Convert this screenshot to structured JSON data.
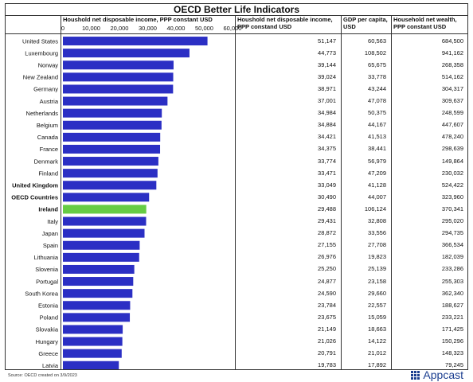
{
  "title": "OECD Better Life Indicators",
  "headers": {
    "chart": "Houshold net disposable income, PPP constant USD",
    "income": "Houshold net disposable income, PPP constand USD",
    "gdp": "GDP per capita, USD",
    "wealth": "Household net wealth, PPP constant USD"
  },
  "source": "Source: OECD created on 3/9/2023",
  "brand": "Appcast",
  "colors": {
    "bar": "#2b2fc4",
    "highlight": "#66cc44"
  },
  "chart_data": {
    "type": "bar",
    "orientation": "horizontal",
    "xlim": [
      0,
      60000
    ],
    "ticks": [
      "0",
      "10,000",
      "20,000",
      "30,000",
      "40,000",
      "50,000",
      "60,000"
    ],
    "highlight": "Ireland",
    "rows": [
      {
        "country": "United States",
        "bold": false,
        "value": 51147,
        "income": "51,147",
        "gdp": "60,563",
        "wealth": "684,500"
      },
      {
        "country": "Luxembourg",
        "bold": false,
        "value": 44773,
        "income": "44,773",
        "gdp": "108,502",
        "wealth": "941,162"
      },
      {
        "country": "Norway",
        "bold": false,
        "value": 39144,
        "income": "39,144",
        "gdp": "65,675",
        "wealth": "268,358"
      },
      {
        "country": "New Zealand",
        "bold": false,
        "value": 39024,
        "income": "39,024",
        "gdp": "33,778",
        "wealth": "514,162"
      },
      {
        "country": "Germany",
        "bold": false,
        "value": 38971,
        "income": "38,971",
        "gdp": "43,244",
        "wealth": "304,317"
      },
      {
        "country": "Austria",
        "bold": false,
        "value": 37001,
        "income": "37,001",
        "gdp": "47,078",
        "wealth": "309,637"
      },
      {
        "country": "Netherlands",
        "bold": false,
        "value": 34984,
        "income": "34,984",
        "gdp": "50,375",
        "wealth": "248,599"
      },
      {
        "country": "Belgium",
        "bold": false,
        "value": 34884,
        "income": "34,884",
        "gdp": "44,167",
        "wealth": "447,607"
      },
      {
        "country": "Canada",
        "bold": false,
        "value": 34421,
        "income": "34,421",
        "gdp": "41,513",
        "wealth": "478,240"
      },
      {
        "country": "France",
        "bold": false,
        "value": 34375,
        "income": "34,375",
        "gdp": "38,441",
        "wealth": "298,639"
      },
      {
        "country": "Denmark",
        "bold": false,
        "value": 33774,
        "income": "33,774",
        "gdp": "56,979",
        "wealth": "149,864"
      },
      {
        "country": "Finland",
        "bold": false,
        "value": 33471,
        "income": "33,471",
        "gdp": "47,209",
        "wealth": "230,032"
      },
      {
        "country": "United Kingdom",
        "bold": true,
        "value": 33049,
        "income": "33,049",
        "gdp": "41,128",
        "wealth": "524,422"
      },
      {
        "country": "OECD Countries",
        "bold": true,
        "value": 30490,
        "income": "30,490",
        "gdp": "44,007",
        "wealth": "323,960"
      },
      {
        "country": "Ireland",
        "bold": true,
        "value": 29488,
        "income": "29,488",
        "gdp": "106,124",
        "wealth": "370,341"
      },
      {
        "country": "Italy",
        "bold": false,
        "value": 29431,
        "income": "29,431",
        "gdp": "32,808",
        "wealth": "295,020"
      },
      {
        "country": "Japan",
        "bold": false,
        "value": 28872,
        "income": "28,872",
        "gdp": "33,556",
        "wealth": "294,735"
      },
      {
        "country": "Spain",
        "bold": false,
        "value": 27155,
        "income": "27,155",
        "gdp": "27,708",
        "wealth": "366,534"
      },
      {
        "country": "Lithuania",
        "bold": false,
        "value": 26976,
        "income": "26,976",
        "gdp": "19,823",
        "wealth": "182,039"
      },
      {
        "country": "Slovenia",
        "bold": false,
        "value": 25250,
        "income": "25,250",
        "gdp": "25,139",
        "wealth": "233,286"
      },
      {
        "country": "Portugal",
        "bold": false,
        "value": 24877,
        "income": "24,877",
        "gdp": "23,158",
        "wealth": "255,303"
      },
      {
        "country": "South Korea",
        "bold": false,
        "value": 24590,
        "income": "24,590",
        "gdp": "29,660",
        "wealth": "362,340"
      },
      {
        "country": "Estonia",
        "bold": false,
        "value": 23784,
        "income": "23,784",
        "gdp": "22,557",
        "wealth": "188,627"
      },
      {
        "country": "Poland",
        "bold": false,
        "value": 23675,
        "income": "23,675",
        "gdp": "15,059",
        "wealth": "233,221"
      },
      {
        "country": "Slovakia",
        "bold": false,
        "value": 21149,
        "income": "21,149",
        "gdp": "18,663",
        "wealth": "171,425"
      },
      {
        "country": "Hungary",
        "bold": false,
        "value": 21026,
        "income": "21,026",
        "gdp": "14,122",
        "wealth": "150,296"
      },
      {
        "country": "Greece",
        "bold": false,
        "value": 20791,
        "income": "20,791",
        "gdp": "21,012",
        "wealth": "148,323"
      },
      {
        "country": "Latvia",
        "bold": false,
        "value": 19783,
        "income": "19,783",
        "gdp": "17,892",
        "wealth": "79,245"
      }
    ]
  }
}
